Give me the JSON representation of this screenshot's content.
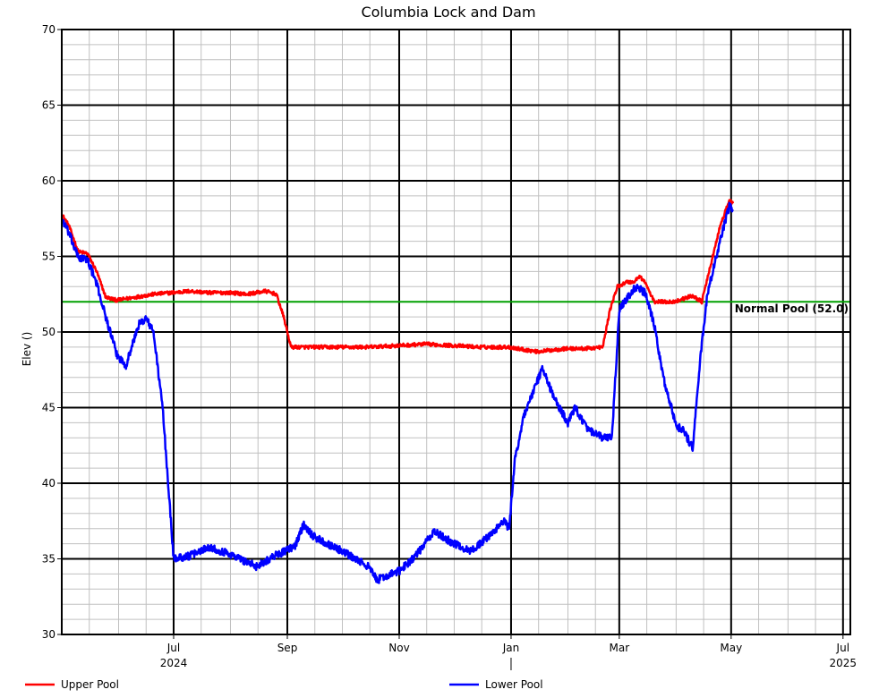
{
  "chart_data": {
    "type": "line",
    "title": "Columbia Lock and Dam",
    "xlabel": "",
    "ylabel": "Elev ()",
    "x_range": [
      "2024-05-01",
      "2025-07-05"
    ],
    "ylim": [
      30,
      70
    ],
    "y_ticks": [
      30,
      35,
      40,
      45,
      50,
      55,
      60,
      65,
      70
    ],
    "x_ticks": [
      {
        "date": "2024-07-01",
        "label": "Jul",
        "sublabel": "2024"
      },
      {
        "date": "2024-09-01",
        "label": "Sep",
        "sublabel": ""
      },
      {
        "date": "2024-11-01",
        "label": "Nov",
        "sublabel": ""
      },
      {
        "date": "2025-01-01",
        "label": "Jan",
        "sublabel": ""
      },
      {
        "date": "2025-03-01",
        "label": "Mar",
        "sublabel": ""
      },
      {
        "date": "2025-05-01",
        "label": "May",
        "sublabel": ""
      },
      {
        "date": "2025-07-01",
        "label": "Jul",
        "sublabel": "2025"
      }
    ],
    "grid": true,
    "legend_position": "bottom",
    "reference_lines": [
      {
        "label": "Normal Pool (52.0)",
        "value": 52.0,
        "color": "#00a000"
      }
    ],
    "series": [
      {
        "name": "Upper Pool",
        "color": "#ff0000",
        "noise": 0.12,
        "x": [
          "2024-05-01",
          "2024-05-05",
          "2024-05-10",
          "2024-05-15",
          "2024-05-20",
          "2024-05-25",
          "2024-05-31",
          "2024-06-10",
          "2024-06-20",
          "2024-06-30",
          "2024-07-10",
          "2024-07-20",
          "2024-08-01",
          "2024-08-10",
          "2024-08-20",
          "2024-08-26",
          "2024-08-30",
          "2024-09-03",
          "2024-09-15",
          "2024-10-01",
          "2024-10-15",
          "2024-11-01",
          "2024-11-15",
          "2024-12-01",
          "2024-12-15",
          "2024-12-31",
          "2025-01-15",
          "2025-01-31",
          "2025-02-10",
          "2025-02-20",
          "2025-02-24",
          "2025-02-28",
          "2025-03-05",
          "2025-03-09",
          "2025-03-12",
          "2025-03-15",
          "2025-03-20",
          "2025-03-31",
          "2025-04-10",
          "2025-04-15",
          "2025-04-20",
          "2025-04-25",
          "2025-04-30",
          "2025-05-02"
        ],
        "values": [
          57.8,
          57.0,
          55.3,
          55.2,
          54.0,
          52.3,
          52.1,
          52.3,
          52.5,
          52.6,
          52.7,
          52.6,
          52.6,
          52.5,
          52.7,
          52.5,
          51.0,
          49.0,
          49.0,
          49.0,
          49.0,
          49.1,
          49.2,
          49.1,
          49.0,
          49.0,
          48.7,
          48.9,
          48.9,
          49.0,
          51.5,
          53.0,
          53.3,
          53.3,
          53.7,
          53.3,
          52.0,
          52.0,
          52.4,
          52.0,
          54.5,
          57.0,
          58.7,
          58.5
        ]
      },
      {
        "name": "Lower Pool",
        "color": "#0000ff",
        "noise": 0.25,
        "x": [
          "2024-05-01",
          "2024-05-05",
          "2024-05-10",
          "2024-05-15",
          "2024-05-20",
          "2024-05-25",
          "2024-05-31",
          "2024-06-05",
          "2024-06-12",
          "2024-06-16",
          "2024-06-20",
          "2024-06-25",
          "2024-06-28",
          "2024-07-01",
          "2024-07-10",
          "2024-07-20",
          "2024-08-01",
          "2024-08-15",
          "2024-08-25",
          "2024-09-05",
          "2024-09-10",
          "2024-09-15",
          "2024-10-01",
          "2024-10-15",
          "2024-10-20",
          "2024-11-01",
          "2024-11-10",
          "2024-11-20",
          "2024-12-01",
          "2024-12-10",
          "2024-12-20",
          "2024-12-28",
          "2024-12-31",
          "2025-01-03",
          "2025-01-08",
          "2025-01-13",
          "2025-01-18",
          "2025-01-25",
          "2025-02-01",
          "2025-02-05",
          "2025-02-12",
          "2025-02-20",
          "2025-02-25",
          "2025-03-01",
          "2025-03-10",
          "2025-03-15",
          "2025-03-20",
          "2025-03-25",
          "2025-04-01",
          "2025-04-05",
          "2025-04-10",
          "2025-04-14",
          "2025-04-18",
          "2025-04-25",
          "2025-04-30",
          "2025-05-02"
        ],
        "values": [
          57.5,
          56.5,
          54.9,
          54.8,
          53.2,
          51.0,
          48.5,
          47.8,
          50.5,
          50.9,
          50.0,
          45.0,
          40.0,
          35.0,
          35.2,
          35.8,
          35.3,
          34.5,
          35.2,
          35.8,
          37.3,
          36.5,
          35.5,
          34.5,
          33.6,
          34.2,
          35.2,
          36.8,
          36.0,
          35.5,
          36.5,
          37.5,
          37.0,
          41.5,
          44.5,
          46.0,
          47.6,
          45.5,
          44.0,
          45.0,
          43.5,
          43.0,
          43.0,
          51.5,
          53.0,
          52.6,
          50.5,
          47.0,
          43.8,
          43.5,
          42.3,
          48.0,
          52.5,
          56.0,
          58.3,
          58.1
        ]
      }
    ]
  }
}
